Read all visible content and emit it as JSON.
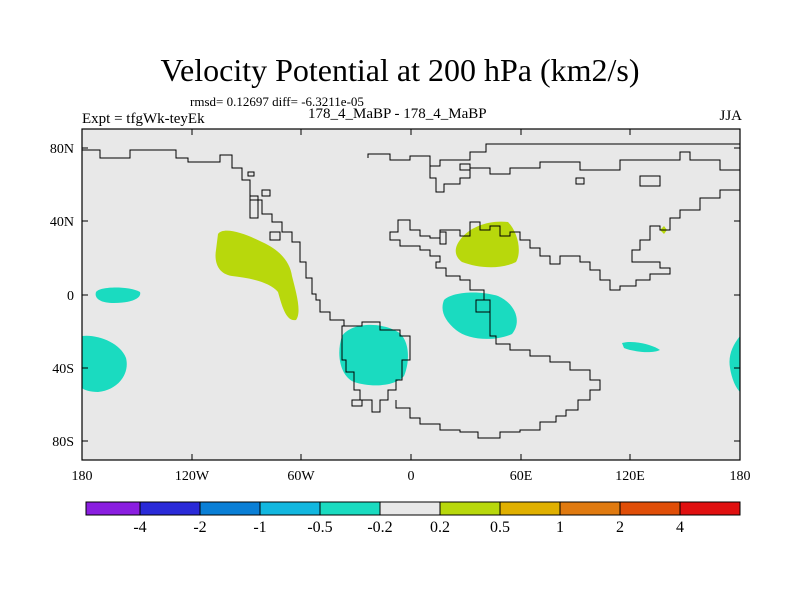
{
  "title": "Velocity Potential at 200 hPa (km2/s)",
  "stats": "rmsd= 0.12697 diff= -6.3211e-05",
  "experiment": "Expt = tfgWk-teyEk",
  "case_label": "178_4_MaBP - 178_4_MaBP",
  "season": "JJA",
  "lon_ticks": [
    "180",
    "120W",
    "60W",
    "0",
    "60E",
    "120E",
    "180"
  ],
  "lat_ticks": [
    "80N",
    "40N",
    "0",
    "40S",
    "80S"
  ],
  "colorbar": {
    "colors": [
      "#8a1ee0",
      "#2a2ad8",
      "#0a7fd6",
      "#12b7df",
      "#1adbc0",
      "#e8e8e8",
      "#b8d80c",
      "#e0b000",
      "#e07a10",
      "#e04e08",
      "#e01010"
    ],
    "labels": [
      "-4",
      "-2",
      "-1",
      "-0.5",
      "-0.2",
      "0.2",
      "0.5",
      "1",
      "2",
      "4"
    ]
  },
  "colors": {
    "background": "#e8e8e8",
    "negative_fill": "#1adbc0",
    "positive_fill": "#b8d80c"
  }
}
